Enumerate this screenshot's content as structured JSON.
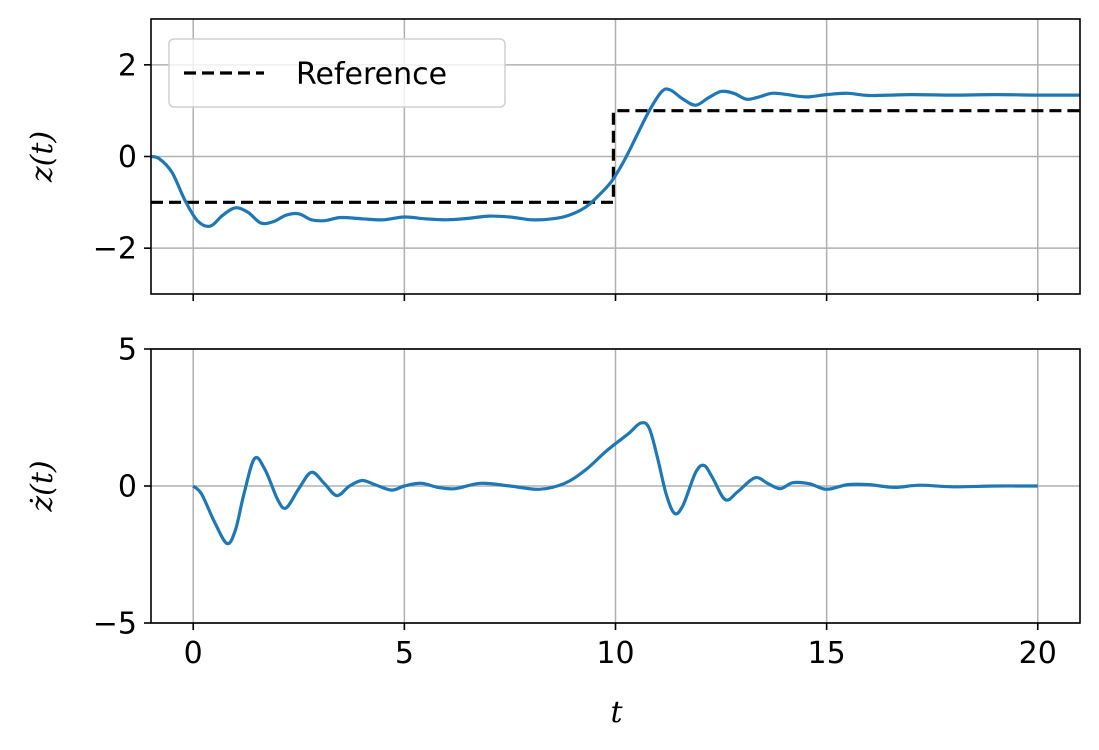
{
  "chart_data": [
    {
      "type": "line",
      "ylabel": "z(t)",
      "xlim": [
        -1,
        21
      ],
      "ylim": [
        -3,
        3
      ],
      "yticks": [
        -2,
        0,
        2
      ],
      "ytick_labels": [
        "−2",
        "0",
        "2"
      ],
      "xticks": [
        0,
        5,
        10,
        15,
        20
      ],
      "grid": true,
      "legend": {
        "placement": "upper-left",
        "entries": [
          "Reference"
        ]
      },
      "colors": {
        "response": "#1f77b4",
        "reference": "#000000"
      },
      "series": [
        {
          "name": "Reference",
          "style": "dashed",
          "x": [
            -1,
            9.95,
            9.95,
            21
          ],
          "y": [
            -1,
            -1,
            1,
            1
          ]
        },
        {
          "style": "solid",
          "x": [
            -1,
            -0.8,
            -0.5,
            -0.2,
            0.1,
            0.4,
            0.7,
            1.0,
            1.3,
            1.6,
            1.9,
            2.2,
            2.5,
            2.8,
            3.1,
            3.5,
            4.0,
            4.5,
            5.0,
            5.5,
            6.0,
            6.5,
            7.0,
            7.5,
            8.0,
            8.5,
            8.9,
            9.3,
            9.6,
            9.9,
            10.2,
            10.5,
            10.8,
            11.1,
            11.3,
            11.6,
            11.9,
            12.2,
            12.5,
            12.8,
            13.1,
            13.4,
            13.7,
            14.0,
            14.5,
            15.0,
            15.5,
            16.0,
            17.0,
            18.0,
            19.0,
            20.0,
            21.0
          ],
          "y": [
            0.0,
            -0.05,
            -0.35,
            -0.95,
            -1.4,
            -1.52,
            -1.28,
            -1.12,
            -1.22,
            -1.45,
            -1.42,
            -1.28,
            -1.25,
            -1.38,
            -1.4,
            -1.33,
            -1.36,
            -1.38,
            -1.32,
            -1.36,
            -1.38,
            -1.35,
            -1.3,
            -1.32,
            -1.38,
            -1.36,
            -1.28,
            -1.1,
            -0.85,
            -0.55,
            -0.1,
            0.45,
            1.0,
            1.42,
            1.45,
            1.25,
            1.12,
            1.28,
            1.42,
            1.38,
            1.25,
            1.3,
            1.38,
            1.36,
            1.3,
            1.35,
            1.38,
            1.33,
            1.35,
            1.34,
            1.35,
            1.34,
            1.34
          ]
        }
      ]
    },
    {
      "type": "line",
      "ylabel": "ż(t)",
      "xlabel": "t",
      "xlim": [
        -1,
        21
      ],
      "ylim": [
        -5,
        5
      ],
      "yticks": [
        -5,
        0,
        5
      ],
      "ytick_labels": [
        "−5",
        "0",
        "5"
      ],
      "xticks": [
        0,
        5,
        10,
        15,
        20
      ],
      "xtick_labels": [
        "0",
        "5",
        "10",
        "15",
        "20"
      ],
      "grid": true,
      "colors": {
        "response": "#1f77b4"
      },
      "series": [
        {
          "style": "solid",
          "x": [
            0,
            0.2,
            0.5,
            0.8,
            1.0,
            1.2,
            1.45,
            1.7,
            2.0,
            2.2,
            2.5,
            2.8,
            3.1,
            3.4,
            3.7,
            4.0,
            4.3,
            4.7,
            5.0,
            5.4,
            5.8,
            6.2,
            6.8,
            7.5,
            8.2,
            8.8,
            9.3,
            9.8,
            10.3,
            10.6,
            10.8,
            11.0,
            11.2,
            11.4,
            11.6,
            11.9,
            12.1,
            12.3,
            12.6,
            12.9,
            13.3,
            13.6,
            13.9,
            14.2,
            14.6,
            15.0,
            15.5,
            16.0,
            16.6,
            17.2,
            18.0,
            19.0,
            20.0
          ],
          "y": [
            0.0,
            -0.3,
            -1.3,
            -2.1,
            -1.6,
            -0.3,
            1.0,
            0.6,
            -0.5,
            -0.8,
            -0.1,
            0.5,
            0.1,
            -0.35,
            0.0,
            0.2,
            0.05,
            -0.15,
            0.0,
            0.1,
            -0.05,
            -0.1,
            0.1,
            0.0,
            -0.12,
            0.1,
            0.6,
            1.3,
            1.9,
            2.3,
            2.1,
            1.0,
            -0.3,
            -1.0,
            -0.7,
            0.5,
            0.75,
            0.3,
            -0.5,
            -0.2,
            0.3,
            0.1,
            -0.1,
            0.12,
            0.08,
            -0.12,
            0.05,
            0.05,
            -0.05,
            0.03,
            -0.03,
            0.0,
            0.0
          ]
        }
      ]
    }
  ]
}
